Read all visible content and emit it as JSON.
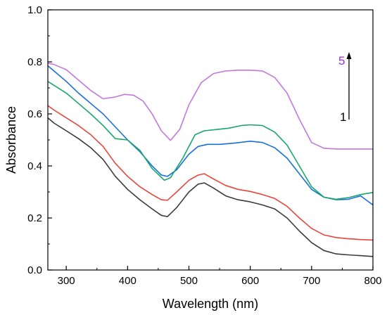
{
  "chart_data": {
    "type": "line",
    "title": "",
    "xlabel": "Wavelength (nm)",
    "ylabel": "Absorbance",
    "xlim": [
      270,
      800
    ],
    "ylim": [
      0.0,
      1.0
    ],
    "x_ticks": [
      300,
      400,
      500,
      600,
      700,
      800
    ],
    "y_ticks": [
      0.0,
      0.2,
      0.4,
      0.6,
      0.8,
      1.0
    ],
    "x_tick_labels": [
      "300",
      "400",
      "500",
      "600",
      "700",
      "800"
    ],
    "y_tick_labels": [
      "0.0",
      "0.2",
      "0.4",
      "0.6",
      "0.8",
      "1.0"
    ],
    "grid": false,
    "annotations": {
      "start_label": "1",
      "end_label": "5",
      "start_color": "#000000",
      "end_color": "#9b30d0"
    },
    "series": [
      {
        "color": "#3a3a3a",
        "points": [
          [
            270,
            0.585
          ],
          [
            280,
            0.565
          ],
          [
            300,
            0.535
          ],
          [
            320,
            0.505
          ],
          [
            340,
            0.47
          ],
          [
            360,
            0.425
          ],
          [
            380,
            0.36
          ],
          [
            400,
            0.31
          ],
          [
            420,
            0.27
          ],
          [
            440,
            0.235
          ],
          [
            455,
            0.21
          ],
          [
            465,
            0.205
          ],
          [
            480,
            0.24
          ],
          [
            500,
            0.3
          ],
          [
            515,
            0.33
          ],
          [
            525,
            0.335
          ],
          [
            540,
            0.315
          ],
          [
            560,
            0.285
          ],
          [
            580,
            0.27
          ],
          [
            600,
            0.262
          ],
          [
            620,
            0.25
          ],
          [
            640,
            0.235
          ],
          [
            660,
            0.2
          ],
          [
            680,
            0.15
          ],
          [
            700,
            0.105
          ],
          [
            720,
            0.075
          ],
          [
            740,
            0.062
          ],
          [
            760,
            0.058
          ],
          [
            780,
            0.055
          ],
          [
            800,
            0.052
          ]
        ]
      },
      {
        "color": "#e8463c",
        "points": [
          [
            270,
            0.632
          ],
          [
            280,
            0.615
          ],
          [
            300,
            0.585
          ],
          [
            320,
            0.555
          ],
          [
            340,
            0.52
          ],
          [
            360,
            0.475
          ],
          [
            380,
            0.41
          ],
          [
            400,
            0.36
          ],
          [
            420,
            0.32
          ],
          [
            440,
            0.29
          ],
          [
            455,
            0.27
          ],
          [
            465,
            0.268
          ],
          [
            480,
            0.3
          ],
          [
            500,
            0.345
          ],
          [
            515,
            0.365
          ],
          [
            525,
            0.37
          ],
          [
            540,
            0.35
          ],
          [
            560,
            0.325
          ],
          [
            580,
            0.31
          ],
          [
            600,
            0.302
          ],
          [
            620,
            0.29
          ],
          [
            640,
            0.275
          ],
          [
            660,
            0.245
          ],
          [
            680,
            0.2
          ],
          [
            700,
            0.16
          ],
          [
            720,
            0.135
          ],
          [
            740,
            0.125
          ],
          [
            760,
            0.12
          ],
          [
            780,
            0.117
          ],
          [
            800,
            0.115
          ]
        ]
      },
      {
        "color": "#1a6fd8",
        "points": [
          [
            270,
            0.785
          ],
          [
            280,
            0.765
          ],
          [
            300,
            0.725
          ],
          [
            320,
            0.68
          ],
          [
            340,
            0.64
          ],
          [
            360,
            0.6
          ],
          [
            380,
            0.55
          ],
          [
            400,
            0.5
          ],
          [
            420,
            0.455
          ],
          [
            440,
            0.4
          ],
          [
            455,
            0.365
          ],
          [
            465,
            0.36
          ],
          [
            480,
            0.385
          ],
          [
            500,
            0.445
          ],
          [
            515,
            0.475
          ],
          [
            530,
            0.483
          ],
          [
            550,
            0.483
          ],
          [
            575,
            0.488
          ],
          [
            600,
            0.495
          ],
          [
            620,
            0.49
          ],
          [
            640,
            0.47
          ],
          [
            660,
            0.43
          ],
          [
            680,
            0.37
          ],
          [
            700,
            0.31
          ],
          [
            720,
            0.28
          ],
          [
            740,
            0.27
          ],
          [
            760,
            0.272
          ],
          [
            780,
            0.285
          ],
          [
            800,
            0.25
          ]
        ]
      },
      {
        "color": "#17a86a",
        "points": [
          [
            270,
            0.725
          ],
          [
            280,
            0.71
          ],
          [
            300,
            0.68
          ],
          [
            320,
            0.64
          ],
          [
            340,
            0.6
          ],
          [
            360,
            0.555
          ],
          [
            380,
            0.505
          ],
          [
            400,
            0.5
          ],
          [
            420,
            0.46
          ],
          [
            440,
            0.39
          ],
          [
            460,
            0.345
          ],
          [
            470,
            0.355
          ],
          [
            490,
            0.43
          ],
          [
            510,
            0.52
          ],
          [
            525,
            0.535
          ],
          [
            545,
            0.54
          ],
          [
            565,
            0.545
          ],
          [
            585,
            0.555
          ],
          [
            600,
            0.558
          ],
          [
            620,
            0.555
          ],
          [
            640,
            0.53
          ],
          [
            660,
            0.48
          ],
          [
            680,
            0.4
          ],
          [
            700,
            0.32
          ],
          [
            720,
            0.28
          ],
          [
            740,
            0.272
          ],
          [
            760,
            0.278
          ],
          [
            780,
            0.29
          ],
          [
            800,
            0.298
          ]
        ]
      },
      {
        "color": "#c278dd",
        "points": [
          [
            270,
            0.795
          ],
          [
            280,
            0.79
          ],
          [
            300,
            0.77
          ],
          [
            320,
            0.73
          ],
          [
            340,
            0.69
          ],
          [
            360,
            0.658
          ],
          [
            380,
            0.665
          ],
          [
            395,
            0.675
          ],
          [
            410,
            0.672
          ],
          [
            425,
            0.65
          ],
          [
            440,
            0.6
          ],
          [
            455,
            0.535
          ],
          [
            470,
            0.498
          ],
          [
            485,
            0.54
          ],
          [
            500,
            0.635
          ],
          [
            520,
            0.72
          ],
          [
            540,
            0.755
          ],
          [
            560,
            0.765
          ],
          [
            580,
            0.768
          ],
          [
            600,
            0.768
          ],
          [
            620,
            0.765
          ],
          [
            640,
            0.74
          ],
          [
            660,
            0.68
          ],
          [
            680,
            0.58
          ],
          [
            700,
            0.49
          ],
          [
            720,
            0.468
          ],
          [
            740,
            0.465
          ],
          [
            760,
            0.465
          ],
          [
            780,
            0.465
          ],
          [
            800,
            0.465
          ]
        ]
      }
    ]
  }
}
